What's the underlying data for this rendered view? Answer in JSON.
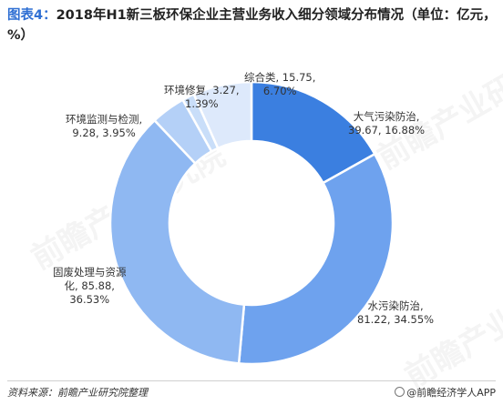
{
  "title": {
    "prefix": "图表4：",
    "text": "2018年H1新三板环保企业主营业务收入细分领域分布情况（单位：亿元，%）"
  },
  "chart_data": {
    "type": "pie",
    "variant": "donut",
    "title": "图表4：2018年H1新三板环保企业主营业务收入细分领域分布情况（单位：亿元，%）",
    "units": [
      "亿元",
      "%"
    ],
    "slices": [
      {
        "name": "大气污染防治",
        "value": 39.67,
        "percent": 16.88,
        "color": "#3b7fe0",
        "label_line1": "大气污染防治,",
        "label_line2": "39.67, 16.88%"
      },
      {
        "name": "水污染防治",
        "value": 81.22,
        "percent": 34.55,
        "color": "#6ea2ee",
        "label_line1": "水污染防治,",
        "label_line2": "81.22, 34.55%"
      },
      {
        "name": "固废处理与资源化",
        "value": 85.88,
        "percent": 36.53,
        "color": "#8fb8f2",
        "label_line1": "固废处理与资源",
        "label_line2": "化, 85.88,",
        "label_line3": "36.53%"
      },
      {
        "name": "环境监测与检测",
        "value": 9.28,
        "percent": 3.95,
        "color": "#b4d0f7",
        "label_line1": "环境监测与检测,",
        "label_line2": "9.28, 3.95%"
      },
      {
        "name": "环境修复",
        "value": 3.27,
        "percent": 1.39,
        "color": "#c9def9",
        "label_line1": "环境修复, 3.27,",
        "label_line2": "1.39%"
      },
      {
        "name": "综合类",
        "value": 15.75,
        "percent": 6.7,
        "color": "#dde9fb",
        "label_line1": "综合类, 15.75,",
        "label_line2": "6.70%"
      }
    ]
  },
  "footer": {
    "source": "资料来源：前瞻产业研究院整理",
    "credit": "@前瞻经济学人APP"
  },
  "watermark": {
    "text": "前瞻产业研究院"
  }
}
